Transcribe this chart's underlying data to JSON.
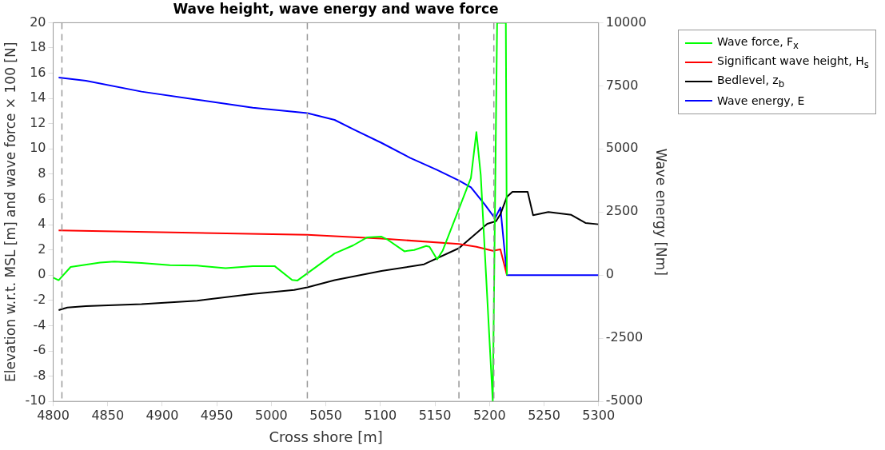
{
  "chart_data": {
    "type": "line",
    "title": "Wave height, wave energy and wave force",
    "xlabel": "Cross shore [m]",
    "ylabel": "Elevation w.r.t. MSL [m] and wave force × 100 [N]",
    "y2label": "Wave energy [Nm]",
    "xlim": [
      4800,
      5300
    ],
    "xticks": [
      4800,
      4850,
      4900,
      4950,
      5000,
      5050,
      5100,
      5150,
      5200,
      5250,
      5300
    ],
    "ylim": [
      -10,
      20
    ],
    "yticks": [
      -10,
      -8,
      -6,
      -4,
      -2,
      0,
      2,
      4,
      6,
      8,
      10,
      12,
      14,
      16,
      18,
      20
    ],
    "y2lim": [
      -5000,
      10000
    ],
    "y2ticks": [
      -5000,
      -2500,
      0,
      2500,
      5000,
      7500,
      10000
    ],
    "grid": false,
    "legend": "top right",
    "marker": "none",
    "line_style": "solid",
    "series": [
      {
        "name": "Wave force, F$_{x}$",
        "color": "#00ff00",
        "x": [
          4800,
          4805,
          4816,
          4843,
          4856,
          4881,
          4907,
          4932,
          4958,
          4983,
          5003,
          5019,
          5024,
          5058,
          5075,
          5088,
          5101,
          5107,
          5122,
          5131,
          5142,
          5145,
          5152,
          5157,
          5183,
          5188,
          5192,
          5203,
          5207,
          5215,
          5216
        ],
        "values": [
          -0.2,
          -0.4,
          0.65,
          1.0,
          1.08,
          0.97,
          0.8,
          0.76,
          0.55,
          0.72,
          0.72,
          -0.38,
          -0.42,
          1.72,
          2.36,
          3.0,
          3.05,
          2.79,
          1.89,
          2.0,
          2.31,
          2.25,
          1.25,
          1.93,
          7.7,
          11.34,
          7.92,
          -10,
          20,
          20,
          0
        ]
      },
      {
        "name": "Significant wave height, H$_{s}$",
        "color": "#ff0000",
        "x": [
          4805,
          5033,
          5101,
          5172,
          5188,
          5203,
          5210,
          5216
        ],
        "values": [
          3.54,
          3.2,
          2.9,
          2.47,
          2.25,
          1.93,
          2.04,
          0
        ]
      },
      {
        "name": "Bedlevel, z$_{b}$",
        "color": "#000000",
        "x": [
          4805,
          4813,
          4830,
          4881,
          4932,
          4983,
          5021,
          5033,
          5058,
          5101,
          5140,
          5172,
          5198,
          5206,
          5210,
          5216,
          5221,
          5235,
          5240,
          5254,
          5275,
          5288,
          5300
        ],
        "values": [
          -2.77,
          -2.56,
          -2.45,
          -2.3,
          -2.02,
          -1.49,
          -1.17,
          -0.96,
          -0.4,
          0.33,
          0.86,
          2.14,
          4.07,
          4.28,
          4.82,
          6.21,
          6.6,
          6.6,
          4.75,
          5.0,
          4.78,
          4.14,
          4.03
        ]
      },
      {
        "name": "Wave energy, E",
        "color": "#0000ff",
        "axis": "y2",
        "x": [
          4805,
          4830,
          4881,
          4932,
          4983,
          5033,
          5058,
          5075,
          5101,
          5127,
          5152,
          5172,
          5183,
          5196,
          5205,
          5210,
          5216,
          5300
        ],
        "values": [
          7830,
          7700,
          7270,
          6950,
          6630,
          6420,
          6150,
          5780,
          5240,
          4650,
          4170,
          3750,
          3480,
          2780,
          2250,
          2680,
          0,
          0
        ]
      }
    ],
    "ref_lines": [
      {
        "axis": "x",
        "value": 4808,
        "color": "#999999",
        "line_style": "dashed"
      },
      {
        "axis": "x",
        "value": 5033,
        "color": "#999999",
        "line_style": "dashed"
      },
      {
        "axis": "x",
        "value": 5172,
        "color": "#999999",
        "line_style": "dashed"
      },
      {
        "axis": "x",
        "value": 5204,
        "color": "#999999",
        "line_style": "dashed"
      }
    ]
  }
}
